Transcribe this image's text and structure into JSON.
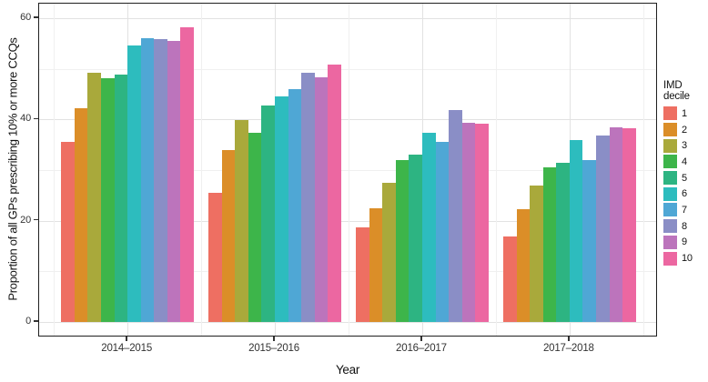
{
  "figure": {
    "kind": "grouped-bar-chart",
    "background": "#ffffff",
    "panel_border_color": "#1f1f1f"
  },
  "chart_data": {
    "type": "bar",
    "title": "",
    "xlabel": "Year",
    "ylabel": "Proportion of all GPs prescribing 10% or more CCQs",
    "categories": [
      "2014–2015",
      "2015–2016",
      "2016–2017",
      "2017–2018"
    ],
    "series": [
      {
        "name": "1",
        "color": "#EE6F62",
        "values": [
          35.5,
          25.5,
          18.7,
          16.8
        ]
      },
      {
        "name": "2",
        "color": "#DB8E28",
        "values": [
          42.2,
          34.0,
          22.4,
          22.3
        ]
      },
      {
        "name": "3",
        "color": "#A9A93B",
        "values": [
          49.3,
          39.8,
          27.4,
          27.0
        ]
      },
      {
        "name": "4",
        "color": "#3DB54A",
        "values": [
          48.2,
          37.3,
          32.0,
          30.5
        ]
      },
      {
        "name": "5",
        "color": "#2DB482",
        "values": [
          48.9,
          42.8,
          33.1,
          31.4
        ]
      },
      {
        "name": "6",
        "color": "#2DBCBE",
        "values": [
          54.6,
          44.6,
          37.3,
          35.9
        ]
      },
      {
        "name": "7",
        "color": "#4FA7D5",
        "values": [
          56.0,
          45.9,
          35.5,
          32.0
        ]
      },
      {
        "name": "8",
        "color": "#8A8EC6",
        "values": [
          55.9,
          49.2,
          41.9,
          36.8
        ]
      },
      {
        "name": "9",
        "color": "#BC74BC",
        "values": [
          55.5,
          48.4,
          39.4,
          38.5
        ]
      },
      {
        "name": "10",
        "color": "#EC67A1",
        "values": [
          58.2,
          50.8,
          39.2,
          38.3
        ]
      }
    ],
    "ylim": [
      0,
      60
    ],
    "yticks": [
      0,
      20,
      40,
      60
    ],
    "yticks_minor": [
      10,
      30,
      50
    ],
    "grid": "major and minor, light gray, horizontal and vertical",
    "legend_position": "right",
    "legend_title": "IMD decile",
    "legend_entries": [
      "1",
      "2",
      "3",
      "4",
      "5",
      "6",
      "7",
      "8",
      "9",
      "10"
    ]
  }
}
